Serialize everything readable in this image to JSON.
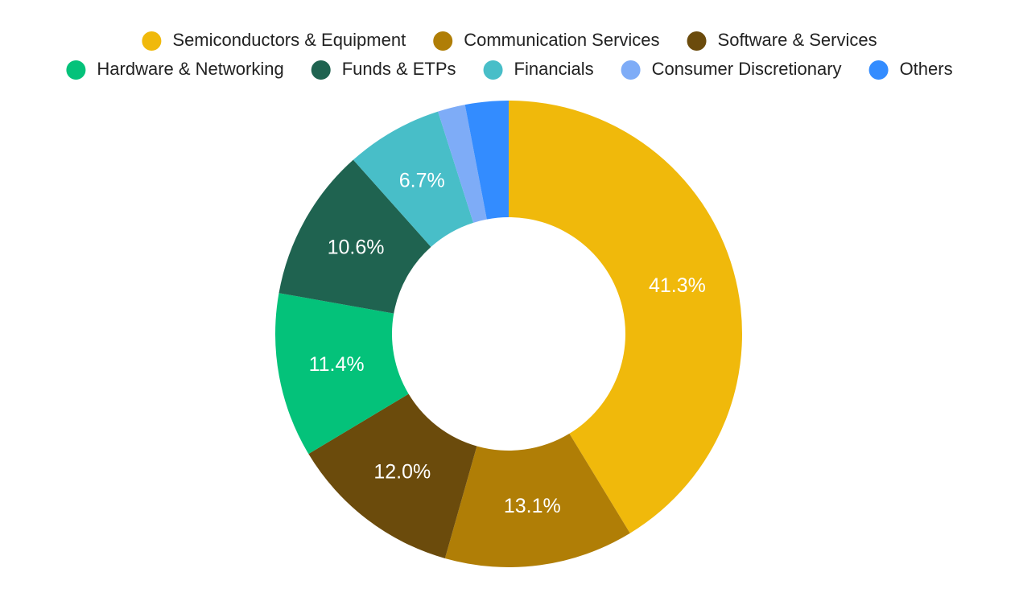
{
  "chart_data": {
    "type": "donut",
    "categories": [
      "Semiconductors & Equipment",
      "Communication Services",
      "Software & Services",
      "Hardware & Networking",
      "Funds & ETPs",
      "Financials",
      "Consumer Discretionary",
      "Others"
    ],
    "values": [
      41.3,
      13.1,
      12.0,
      11.4,
      10.6,
      6.7,
      1.9,
      3.0
    ],
    "value_labels": [
      "41.3%",
      "13.1%",
      "12.0%",
      "11.4%",
      "10.6%",
      "6.7%",
      null,
      null
    ],
    "colors": [
      "#f0b90b",
      "#b07e06",
      "#6b4b0c",
      "#04c27a",
      "#1f6350",
      "#48bec8",
      "#7eacf7",
      "#338cff"
    ],
    "legend": "top"
  }
}
